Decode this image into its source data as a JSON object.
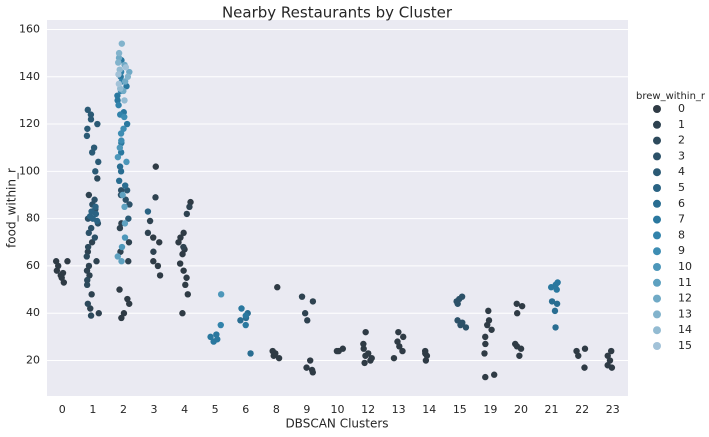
{
  "chart_data": {
    "type": "strip",
    "title": "Nearby Restaurants by Cluster",
    "x_label": "DBSCAN Clusters",
    "y_label": "food_within_r",
    "legend_title": "brew_within_r",
    "legend_position": "right",
    "grid": true,
    "categories": [
      "0",
      "1",
      "2",
      "3",
      "4",
      "5",
      "6",
      "8",
      "9",
      "10",
      "12",
      "13",
      "14",
      "15",
      "19",
      "20",
      "21",
      "22",
      "23"
    ],
    "ylim": [
      5,
      164
    ],
    "yticks": [
      20,
      40,
      60,
      80,
      100,
      120,
      140,
      160
    ],
    "series": [
      {
        "name": "0",
        "color": "#2f3b45",
        "x": [
          "0",
          "0",
          "0",
          "0",
          "0",
          "0",
          "0",
          "0",
          "2",
          "2",
          "2",
          "2",
          "2",
          "3",
          "3",
          "3",
          "3",
          "3",
          "3",
          "4",
          "4",
          "4",
          "4",
          "4",
          "4",
          "4",
          "4",
          "4",
          "4",
          "4",
          "4",
          "8",
          "8",
          "8",
          "8",
          "8",
          "9",
          "9",
          "9",
          "9",
          "10",
          "10",
          "10",
          "12",
          "12",
          "12",
          "12",
          "12",
          "12",
          "12",
          "12",
          "13",
          "13",
          "13",
          "13",
          "13",
          "13",
          "14",
          "14",
          "14",
          "14",
          "19",
          "19",
          "19",
          "19",
          "19",
          "19",
          "19",
          "19",
          "19",
          "20",
          "20",
          "20",
          "20",
          "20",
          "20",
          "20",
          "22",
          "22",
          "22",
          "22",
          "23",
          "23",
          "23",
          "23",
          "23"
        ],
        "values": [
          62,
          62,
          58,
          57,
          56,
          55,
          53,
          60,
          38,
          40,
          44,
          46,
          50,
          56,
          60,
          62,
          70,
          72,
          102,
          40,
          48,
          52,
          55,
          58,
          61,
          65,
          67,
          70,
          72,
          74,
          87,
          21,
          22,
          23,
          24,
          51,
          15,
          16,
          17,
          20,
          24,
          25,
          24,
          19,
          20,
          21,
          22,
          23,
          25,
          27,
          32,
          21,
          24,
          26,
          28,
          30,
          32,
          20,
          22,
          23,
          24,
          13,
          14,
          23,
          27,
          30,
          33,
          35,
          37,
          41,
          22,
          25,
          26,
          27,
          40,
          43,
          44,
          17,
          22,
          24,
          25,
          17,
          18,
          20,
          22,
          24
        ]
      },
      {
        "name": "1",
        "color": "#2e4250",
        "x": [
          "1",
          "1",
          "1",
          "1",
          "1",
          "1",
          "1",
          "1",
          "1",
          "1",
          "2",
          "2",
          "2",
          "2",
          "2",
          "3",
          "3",
          "3",
          "3",
          "4",
          "4",
          "4",
          "9",
          "9",
          "9",
          "9"
        ],
        "values": [
          40,
          42,
          48,
          56,
          58,
          60,
          62,
          66,
          70,
          90,
          62,
          66,
          70,
          76,
          78,
          66,
          74,
          79,
          89,
          68,
          82,
          85,
          37,
          40,
          45,
          47
        ]
      },
      {
        "name": "2",
        "color": "#2d4a5c",
        "x": [
          "1",
          "1",
          "1",
          "1",
          "1",
          "1",
          "1"
        ],
        "values": [
          39,
          44,
          52,
          54,
          64,
          68,
          97
        ]
      },
      {
        "name": "3",
        "color": "#2c5168",
        "x": [
          "1",
          "1",
          "1",
          "1",
          "1",
          "1",
          "1",
          "1",
          "2",
          "2",
          "2",
          "2",
          "15",
          "15",
          "15",
          "15",
          "15",
          "15",
          "15",
          "15"
        ],
        "values": [
          72,
          74,
          76,
          78,
          80,
          84,
          86,
          88,
          86,
          88,
          90,
          92,
          34,
          35,
          36,
          37,
          44,
          45,
          46,
          47
        ]
      },
      {
        "name": "4",
        "color": "#2b5a75",
        "x": [
          "1",
          "1",
          "1",
          "1",
          "1",
          "1",
          "1",
          "1",
          "1",
          "1",
          "2",
          "2"
        ],
        "values": [
          100,
          104,
          108,
          110,
          115,
          118,
          120,
          122,
          124,
          126,
          80,
          92
        ]
      },
      {
        "name": "5",
        "color": "#2a6383",
        "x": [
          "1",
          "1",
          "1",
          "1",
          "1",
          "1",
          "3"
        ],
        "values": [
          79,
          81,
          82,
          83,
          85,
          80,
          83
        ]
      },
      {
        "name": "6",
        "color": "#296d91",
        "x": [
          "2",
          "2",
          "2",
          "2",
          "6",
          "6",
          "6",
          "6",
          "21",
          "21",
          "21",
          "21"
        ],
        "values": [
          94,
          96,
          100,
          102,
          23,
          37,
          38,
          40,
          34,
          41,
          44,
          45
        ]
      },
      {
        "name": "7",
        "color": "#2a789f",
        "x": [
          "2",
          "2",
          "2",
          "2",
          "2",
          "2",
          "2",
          "2",
          "2",
          "5",
          "5",
          "5",
          "5",
          "6",
          "6",
          "6",
          "21",
          "21",
          "21",
          "21"
        ],
        "values": [
          108,
          112,
          120,
          125,
          130,
          132,
          136,
          140,
          147,
          28,
          29,
          30,
          31,
          35,
          39,
          42,
          50,
          51,
          52,
          53
        ]
      },
      {
        "name": "8",
        "color": "#3283ab",
        "x": [
          "2",
          "2",
          "2",
          "2",
          "2",
          "5"
        ],
        "values": [
          124,
          128,
          134,
          138,
          142,
          35
        ]
      },
      {
        "name": "9",
        "color": "#3d8db3",
        "x": [
          "2",
          "2",
          "2",
          "2"
        ],
        "values": [
          113,
          116,
          118,
          123
        ]
      },
      {
        "name": "10",
        "color": "#4d97ba",
        "x": [
          "2",
          "2",
          "2",
          "2",
          "2",
          "5"
        ],
        "values": [
          104,
          106,
          110,
          72,
          68,
          48
        ]
      },
      {
        "name": "11",
        "color": "#5ea1c0",
        "x": [
          "2",
          "2",
          "2",
          "2",
          "2"
        ],
        "values": [
          78,
          85,
          90,
          64,
          62
        ]
      },
      {
        "name": "12",
        "color": "#70aac6",
        "x": [
          "2",
          "2",
          "2",
          "2",
          "2"
        ],
        "values": [
          134,
          138,
          142,
          145,
          148
        ]
      },
      {
        "name": "13",
        "color": "#82b3cc",
        "x": [
          "2",
          "2",
          "2",
          "2"
        ],
        "values": [
          150,
          154,
          146,
          140
        ]
      },
      {
        "name": "14",
        "color": "#93bbd2",
        "x": [
          "2",
          "2",
          "2"
        ],
        "values": [
          130,
          135,
          143
        ]
      },
      {
        "name": "15",
        "color": "#a2c2d8",
        "x": [
          "2",
          "2",
          "2"
        ],
        "values": [
          137,
          141,
          144
        ]
      }
    ]
  }
}
